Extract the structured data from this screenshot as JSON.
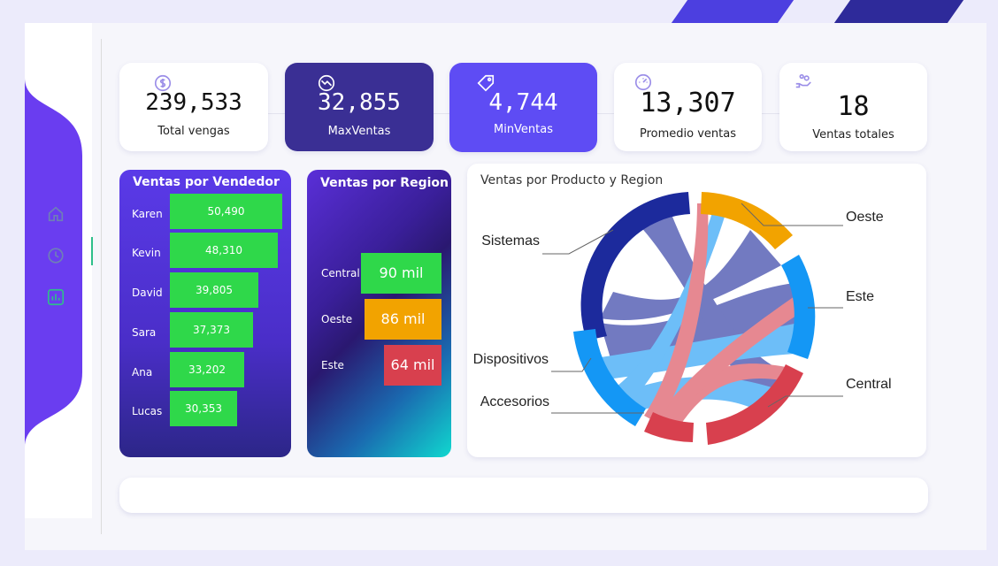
{
  "kpis": {
    "total": {
      "value": "239,533",
      "label": "Total vengas",
      "icon": "dollar-icon"
    },
    "max": {
      "value": "32,855",
      "label": "MaxVentas",
      "icon": "trend-down-icon"
    },
    "min": {
      "value": "4,744",
      "label": "MinVentas",
      "icon": "tag-icon"
    },
    "avg": {
      "value": "13,307",
      "label": "Promedio ventas",
      "icon": "speedometer-icon"
    },
    "count": {
      "value": "18",
      "label": "Ventas totales",
      "icon": "hand-coins-icon"
    }
  },
  "sidebar": {
    "items": [
      "home-icon",
      "clock-icon",
      "bar-chart-icon"
    ]
  },
  "chart_data": [
    {
      "type": "bar",
      "title": "Ventas por Vendedor",
      "categories": [
        "Karen",
        "Kevin",
        "David",
        "Sara",
        "Ana",
        "Lucas"
      ],
      "values": [
        50490,
        48310,
        39805,
        37373,
        33202,
        30353
      ],
      "labels": [
        "50,490",
        "48,310",
        "39,805",
        "37,373",
        "33,202",
        "30,353"
      ],
      "color": "#2fd84a"
    },
    {
      "type": "bar",
      "title": "Ventas por Region",
      "categories": [
        "Central",
        "Oeste",
        "Este"
      ],
      "values": [
        90,
        86,
        64
      ],
      "labels": [
        "90 mil",
        "86 mil",
        "64 mil"
      ],
      "colors": [
        "#2fd84a",
        "#f2a300",
        "#d8404e"
      ]
    },
    {
      "type": "chord",
      "title": "Ventas por Producto y Region",
      "nodes": [
        "Oeste",
        "Este",
        "Central",
        "Accesorios",
        "Dispositivos",
        "Sistemas"
      ],
      "colors": {
        "Oeste": "#f2a300",
        "Este": "#1497f5",
        "Central": "#d8404e",
        "Accesorios": "#d8404e",
        "Dispositivos": "#1497f5",
        "Sistemas": "#1c2a9c"
      }
    }
  ]
}
